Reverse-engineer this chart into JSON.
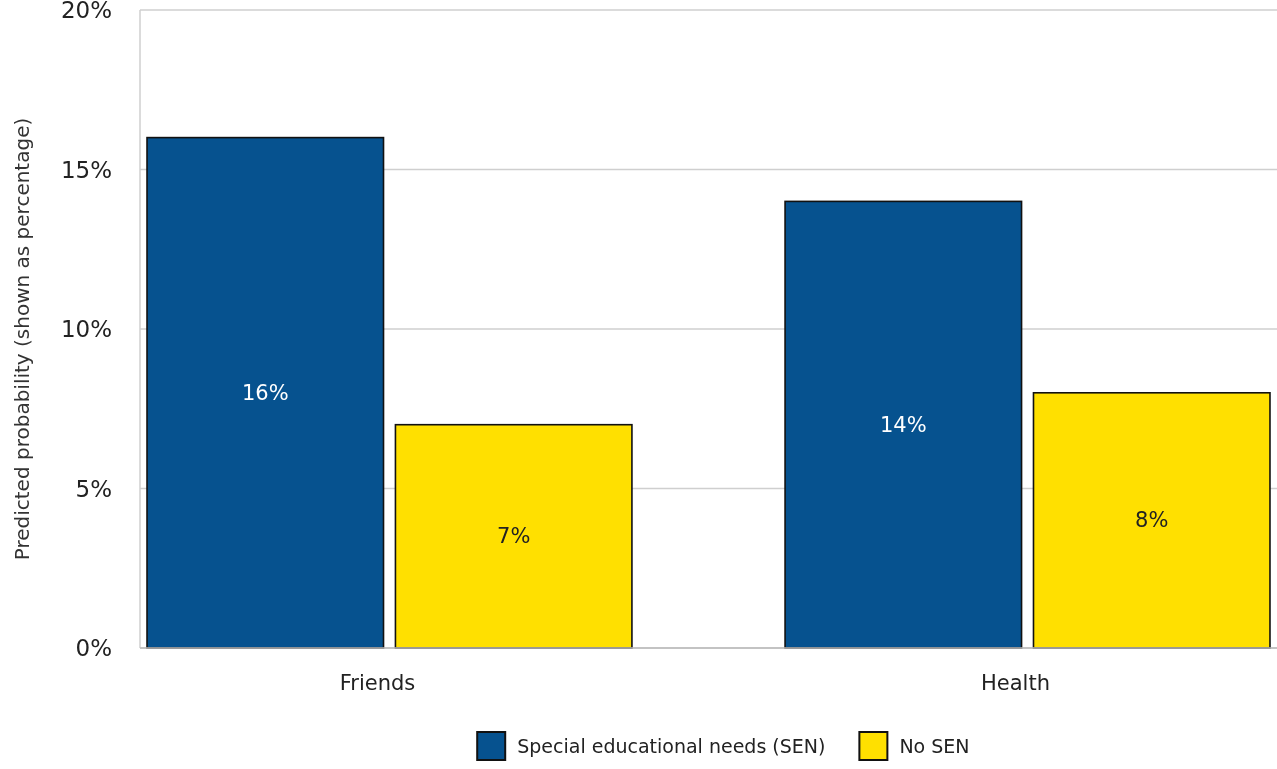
{
  "chart_data": {
    "type": "bar",
    "ylabel": "Predicted probability (shown as percentage)",
    "categories": [
      "Friends",
      "Health"
    ],
    "series": [
      {
        "name": "Special educational needs (SEN)",
        "color": "#06528f",
        "values": [
          16,
          14
        ],
        "value_labels": [
          "16%",
          "14%"
        ]
      },
      {
        "name": "No SEN",
        "color": "#ffe000",
        "values": [
          7,
          8
        ],
        "value_labels": [
          "7%",
          "8%"
        ]
      }
    ],
    "ylim": [
      0,
      20
    ],
    "yticks": [
      {
        "value": 0,
        "label": "0%"
      },
      {
        "value": 5,
        "label": "5%"
      },
      {
        "value": 10,
        "label": "10%"
      },
      {
        "value": 15,
        "label": "15%"
      },
      {
        "value": 20,
        "label": "20%"
      }
    ],
    "grid": "y",
    "legend": "bottom"
  }
}
